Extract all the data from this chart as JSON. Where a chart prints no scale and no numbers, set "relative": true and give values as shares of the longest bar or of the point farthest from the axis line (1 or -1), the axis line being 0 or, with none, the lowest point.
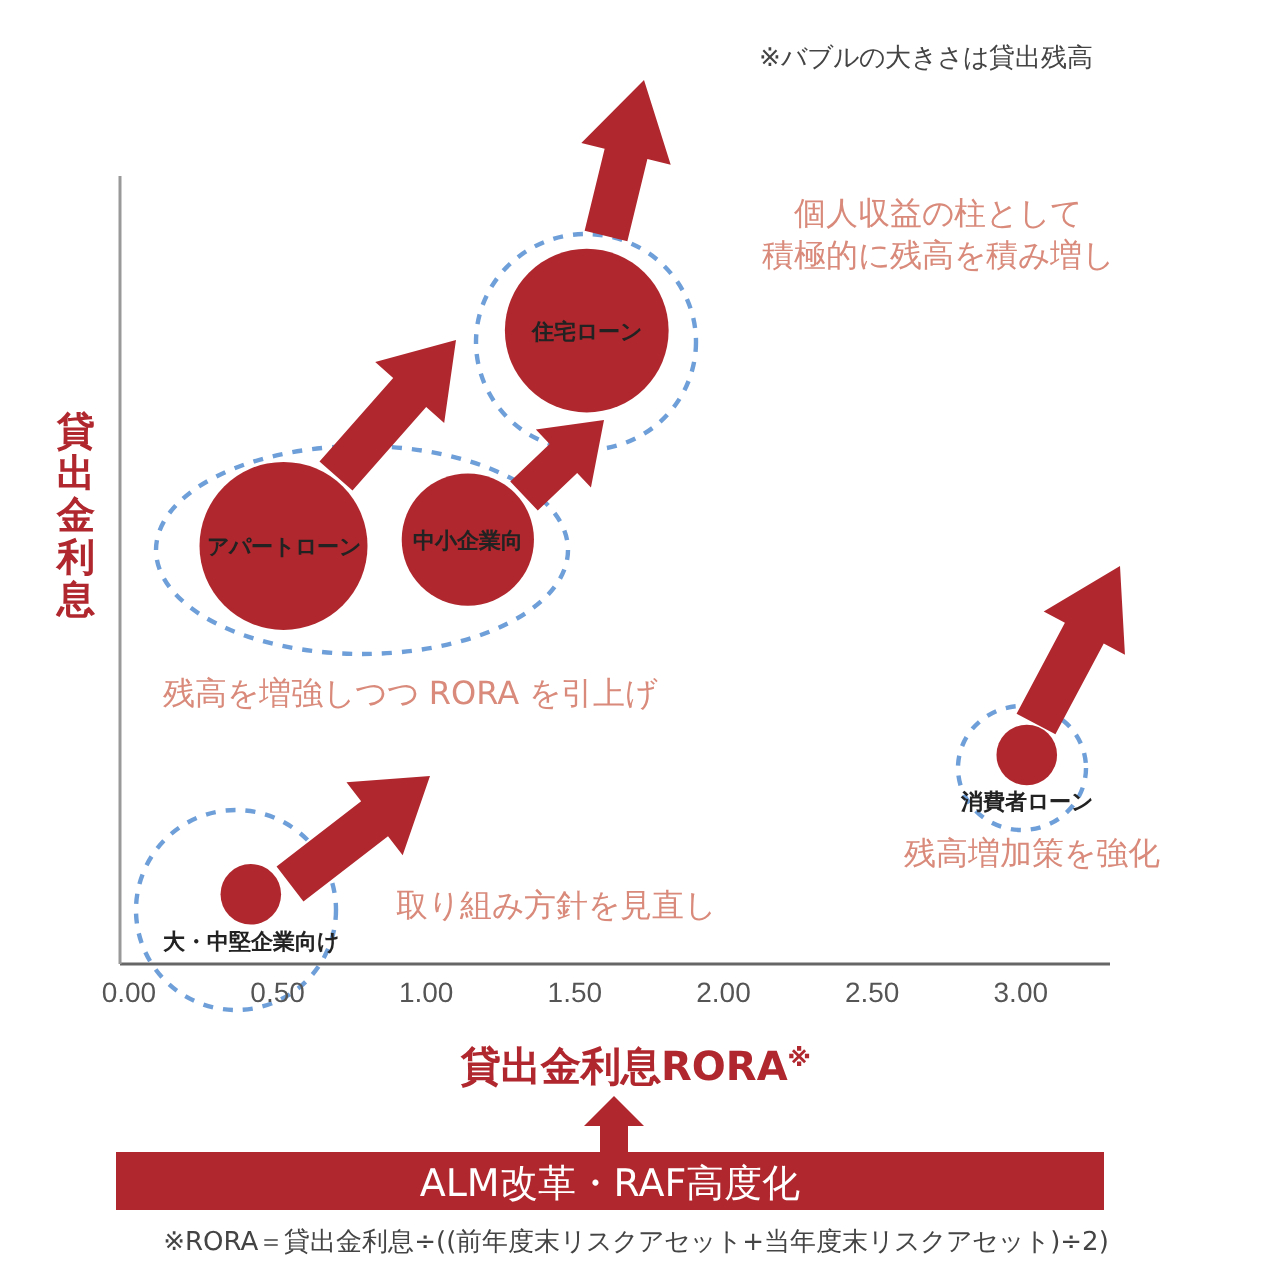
{
  "chart_data": {
    "type": "bubble",
    "xlabel": "貸出金利息RORA$^{※}$",
    "ylabel": "貸出金利息",
    "relative": true,
    "xlim": [
      -0.03,
      3.3
    ],
    "xticks": [
      {
        "value": 0,
        "label": "0.00"
      },
      {
        "value": 0.5,
        "label": "0.50"
      },
      {
        "value": 1,
        "label": "1.00"
      },
      {
        "value": 1.5,
        "label": "1.50"
      },
      {
        "value": 2,
        "label": "2.00"
      },
      {
        "value": 2.5,
        "label": "2.50"
      },
      {
        "value": 3,
        "label": "3.00"
      }
    ],
    "tick_labels": "x",
    "series": [
      {
        "color": "#b0282e",
        "x": [
          0.41,
          0.52,
          1.14,
          1.54,
          3.02
        ],
        "values": [
          0.11,
          0.66,
          0.67,
          1,
          0.33
        ],
        "sizes": [
          0.13,
          1,
          0.62,
          0.95,
          0.13
        ]
      }
    ],
    "annotations": [
      {
        "text": "大・中堅企業向け",
        "x": 0.41,
        "y": 0.11
      },
      {
        "text": "アパートローン",
        "x": 0.52,
        "y": 0.66
      },
      {
        "text": "中小企業向",
        "x": 1.14,
        "y": 0.67
      },
      {
        "text": "住宅ローン",
        "x": 1.54,
        "y": 1
      },
      {
        "text": "消費者ローン",
        "x": 3.02,
        "y": 0.33
      },
      "※バブルの大きさは貸出残高",
      "個人収益の柱として積極的に残高を積み増し",
      "残高を増強しつつ RORA を引上げ",
      "取り組み方針を見直し",
      "残高増加策を強化",
      "ALM改革・RAF高度化",
      "※RORA＝貸出金利息÷((前年度末リスクアセット+当年度末リスクアセット)÷2)"
    ]
  }
}
